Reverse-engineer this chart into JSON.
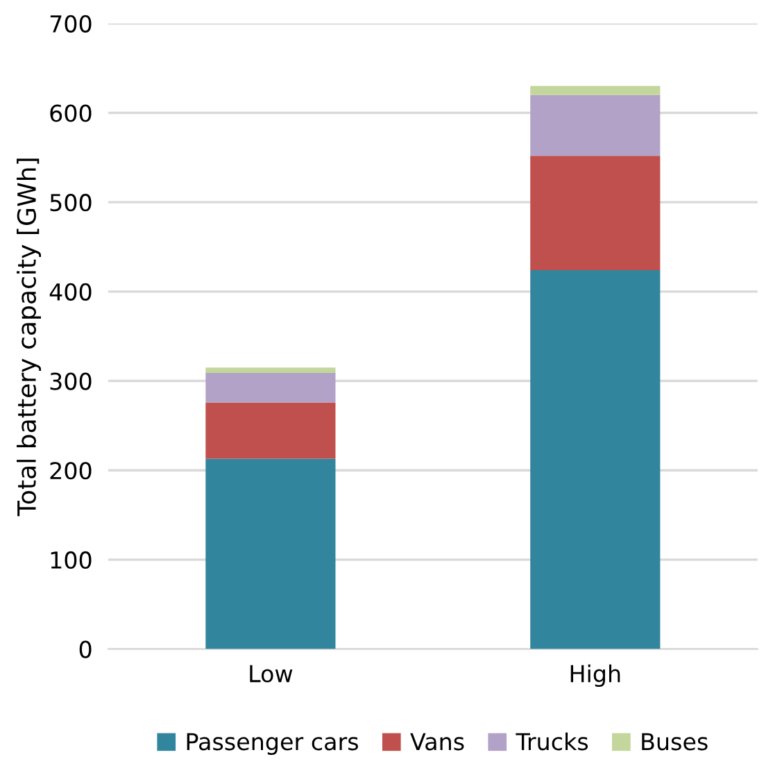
{
  "chart_data": {
    "type": "bar",
    "stacked": true,
    "ylabel": "Total battery capacity [GWh]",
    "categories": [
      "Low",
      "High"
    ],
    "series": [
      {
        "name": "Passenger cars",
        "color": "#31859c",
        "values": [
          213,
          424
        ]
      },
      {
        "name": "Vans",
        "color": "#c0504d",
        "values": [
          63,
          128
        ]
      },
      {
        "name": "Trucks",
        "color": "#b2a2c7",
        "values": [
          33,
          68
        ]
      },
      {
        "name": "Buses",
        "color": "#c3d69b",
        "values": [
          6,
          10
        ]
      }
    ],
    "ylim": [
      0,
      700
    ],
    "yticks": [
      0,
      100,
      200,
      300,
      400,
      500,
      600,
      700
    ],
    "grid": "y",
    "legend": "bottom"
  }
}
